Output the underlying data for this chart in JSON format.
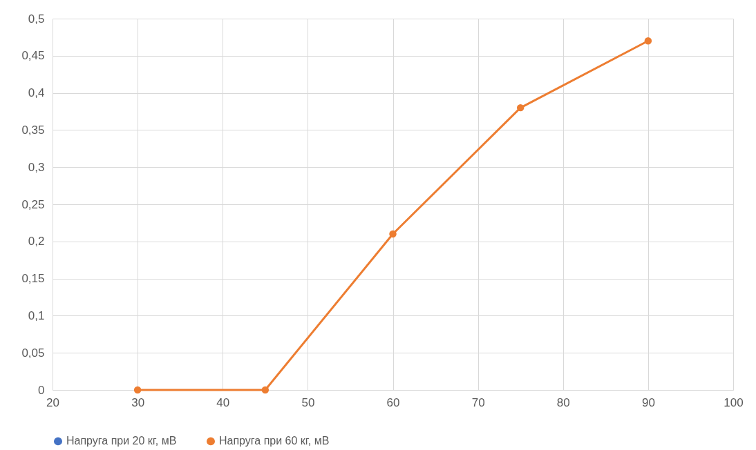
{
  "chart_data": {
    "type": "line",
    "x": [
      30,
      45,
      60,
      75,
      90
    ],
    "series": [
      {
        "name": "Напруга при 20 кг, мВ",
        "color": "#4472c4",
        "values": [
          null,
          null,
          null,
          null,
          null
        ]
      },
      {
        "name": "Напруга при 60 кг, мВ",
        "color": "#ed7d31",
        "values": [
          0,
          0,
          0.21,
          0.38,
          0.47
        ]
      }
    ],
    "xlim": [
      20,
      100
    ],
    "xticks": [
      20,
      30,
      40,
      50,
      60,
      70,
      80,
      90,
      100
    ],
    "ylim": [
      0,
      0.5
    ],
    "yticks": [
      0,
      {
        "value": 0.05,
        "label": "0,05"
      },
      {
        "value": 0.1,
        "label": "0,1"
      },
      {
        "value": 0.15,
        "label": "0,15"
      },
      {
        "value": 0.2,
        "label": "0,2"
      },
      {
        "value": 0.25,
        "label": "0,25"
      },
      {
        "value": 0.3,
        "label": "0,3"
      },
      {
        "value": 0.35,
        "label": "0,35"
      },
      {
        "value": 0.4,
        "label": "0,4"
      },
      {
        "value": 0.45,
        "label": "0,45"
      },
      {
        "value": 0.5,
        "label": "0,5"
      }
    ],
    "grid": true,
    "legend": "bottom",
    "marker": "circle"
  }
}
